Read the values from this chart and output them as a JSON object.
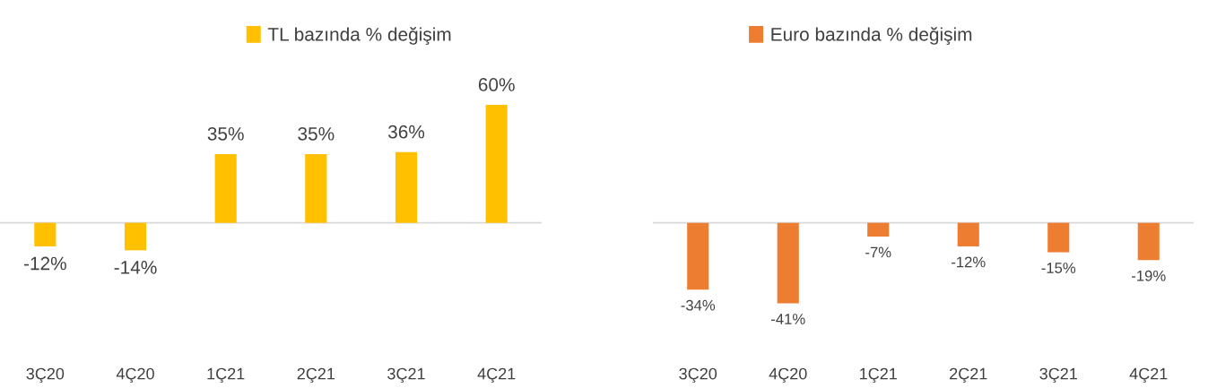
{
  "chart_data": [
    {
      "type": "bar",
      "categories": [
        "3Ç20",
        "4Ç20",
        "1Ç21",
        "2Ç21",
        "3Ç21",
        "4Ç21"
      ],
      "series": [
        {
          "name": "TL bazında % değişim",
          "color": "#ffc000",
          "values": [
            -12,
            -14,
            35,
            35,
            36,
            60
          ],
          "value_labels": [
            "-12%",
            "-14%",
            "35%",
            "35%",
            "36%",
            "60%"
          ]
        }
      ],
      "legend": "top"
    },
    {
      "type": "bar",
      "categories": [
        "3Ç20",
        "4Ç20",
        "1Ç21",
        "2Ç21",
        "3Ç21",
        "4Ç21"
      ],
      "series": [
        {
          "name": "Euro bazında % değişim",
          "color": "#ed7d31",
          "values": [
            -34,
            -41,
            -7,
            -12,
            -15,
            -19
          ],
          "value_labels": [
            "-34%",
            "-41%",
            "-7%",
            "-12%",
            "-15%",
            "-19%"
          ]
        }
      ],
      "legend": "top"
    }
  ]
}
